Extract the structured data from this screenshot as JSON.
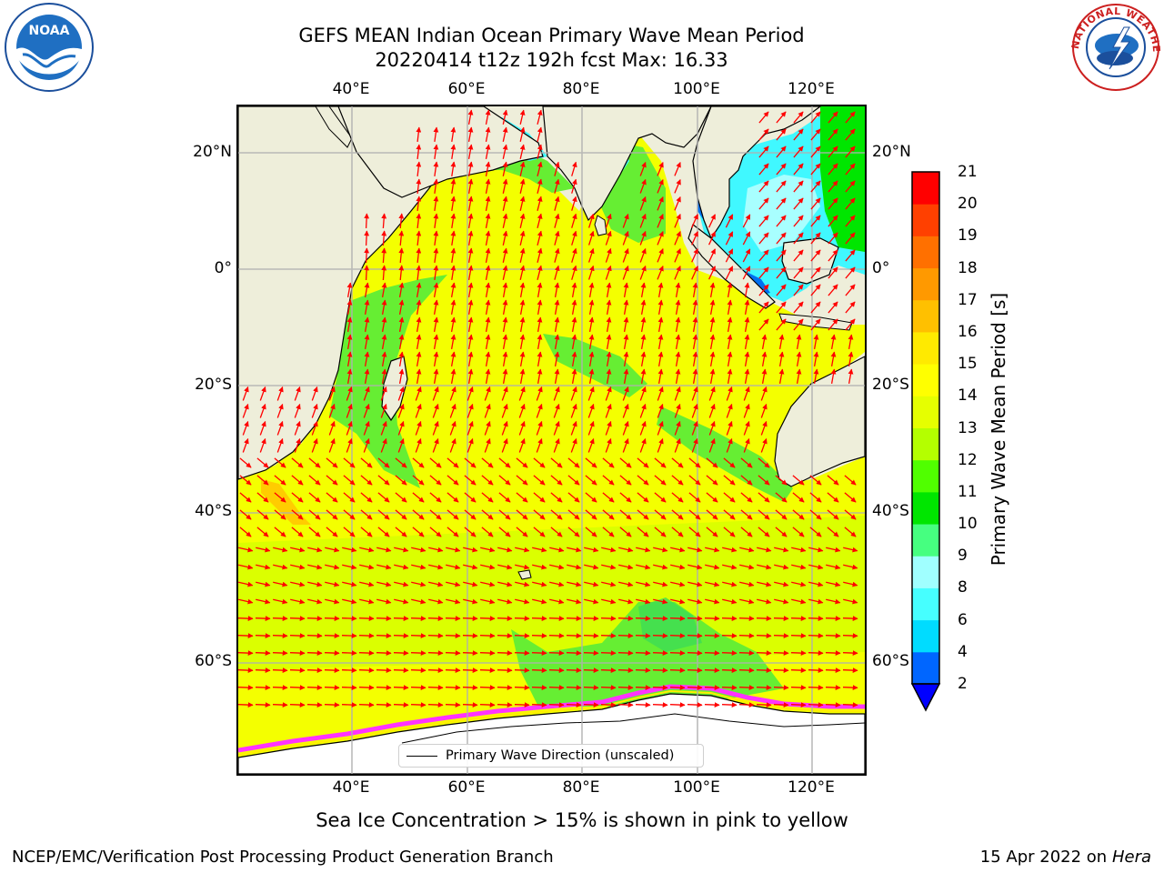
{
  "title": {
    "line1": "GEFS MEAN Indian Ocean Primary Wave Mean Period",
    "line2": "20220414 t12z 192h fcst   Max: 16.33"
  },
  "map": {
    "lon_ticks": [
      "40°E",
      "60°E",
      "80°E",
      "100°E",
      "120°E"
    ],
    "lat_ticks": [
      "20°N",
      "0°",
      "20°S",
      "40°S",
      "60°S"
    ]
  },
  "legend": {
    "label": "Primary Wave Direction (unscaled)"
  },
  "colorbar": {
    "label": "Primary Wave Mean Period [s]",
    "ticks": [
      "2",
      "4",
      "6",
      "8",
      "9",
      "10",
      "11",
      "12",
      "13",
      "14",
      "15",
      "16",
      "17",
      "18",
      "19",
      "20",
      "21"
    ],
    "colors": [
      "#0066ff",
      "#00dcff",
      "#46ffff",
      "#a0ffff",
      "#46ff80",
      "#00e600",
      "#50ff00",
      "#b4ff00",
      "#e6ff00",
      "#ffff00",
      "#ffea00",
      "#ffc000",
      "#ff9900",
      "#ff7000",
      "#ff4000",
      "#ff0000"
    ],
    "extend_color": "#0000ff"
  },
  "caption": "Sea Ice Concentration > 15% is shown in pink to yellow",
  "footer": {
    "left": "NCEP/EMC/Verification Post Processing Product Generation Branch",
    "right_date": "15 Apr 2022 on ",
    "right_host": "Hera"
  },
  "logos": {
    "noaa_text": "NOAA",
    "nws_text": "NATIONAL WEATHER SERVICE"
  }
}
